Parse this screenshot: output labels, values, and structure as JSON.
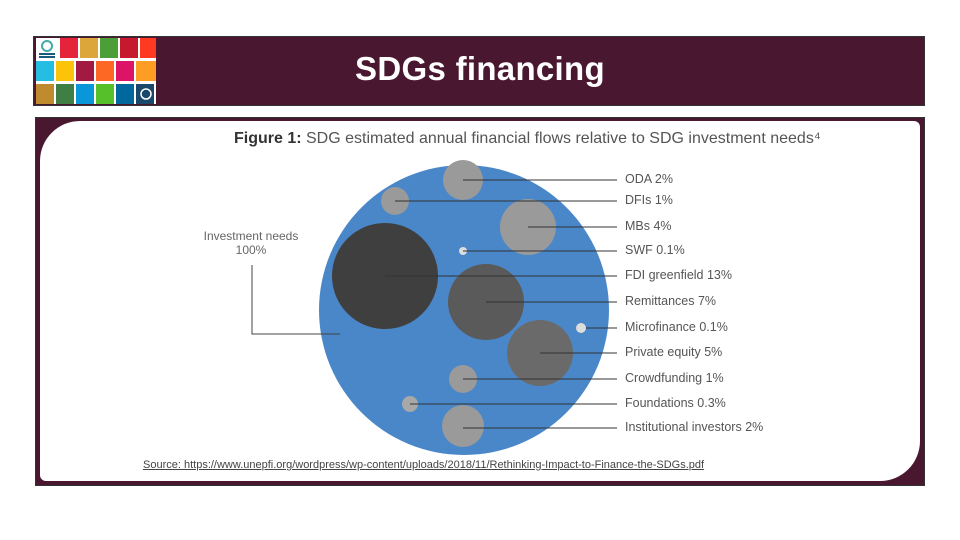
{
  "slide": {
    "title": "SDGs financing",
    "figure_title_bold": "Figure 1:",
    "figure_title": " SDG estimated annual financial flows relative to SDG investment needs⁴",
    "investment_label_line1": "Investment needs",
    "investment_label_line2": "100%",
    "source": "Source: https://www.unepfi.org/wordpress/wp-content/uploads/2018/11/Rethinking-Impact-to-Finance-the-SDGs.pdf"
  },
  "flows": [
    {
      "label": "ODA 2%"
    },
    {
      "label": "DFIs 1%"
    },
    {
      "label": "MBs 4%"
    },
    {
      "label": "SWF 0.1%"
    },
    {
      "label": "FDI greenfield 13%"
    },
    {
      "label": "Remittances 7%"
    },
    {
      "label": "Microfinance 0.1%"
    },
    {
      "label": "Private equity 5%"
    },
    {
      "label": "Crowdfunding 1%"
    },
    {
      "label": "Foundations 0.3%"
    },
    {
      "label": "Institutional investors 2%"
    }
  ],
  "colors": {
    "header": "#4a1730",
    "investment_circle": "#4a87c9",
    "dark_circle": "#3f3f3f",
    "mid_circle": "#5a5a5a",
    "light_circle": "#9a9a9a"
  }
}
